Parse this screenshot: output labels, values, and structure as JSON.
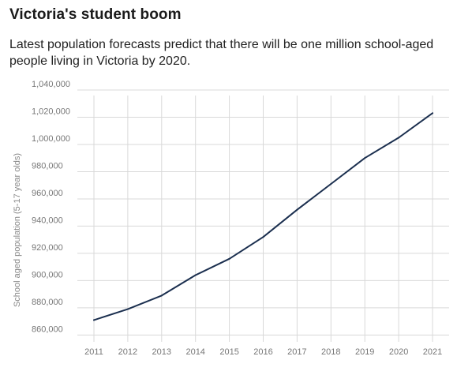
{
  "title": "Victoria's student boom",
  "subtitle": "Latest population forecasts predict that there will be one million school-aged people living in Victoria by 2020.",
  "chart_data": {
    "type": "line",
    "ylabel": "School aged population (5-17 year olds)",
    "xlabel": "",
    "x": [
      "2011",
      "2012",
      "2013",
      "2014",
      "2015",
      "2016",
      "2017",
      "2018",
      "2019",
      "2020",
      "2021"
    ],
    "series": [
      {
        "values": [
          871000,
          879000,
          889000,
          904000,
          916000,
          932000,
          952000,
          971000,
          990000,
          1005000,
          1023000
        ]
      }
    ],
    "ylim": [
      855000,
      1040000
    ],
    "yticks": [
      860000,
      880000,
      900000,
      920000,
      940000,
      960000,
      980000,
      1000000,
      1020000,
      1040000
    ],
    "ytick_labels": [
      "860,000",
      "880,000",
      "900,000",
      "920,000",
      "940,000",
      "960,000",
      "980,000",
      "1,000,000",
      "1,020,000",
      "1,040,000"
    ],
    "grid": true,
    "legend": "none",
    "colors": {
      "line": "#1b2f4f",
      "grid": "#d9d9d9",
      "axis_text": "#777777"
    }
  }
}
